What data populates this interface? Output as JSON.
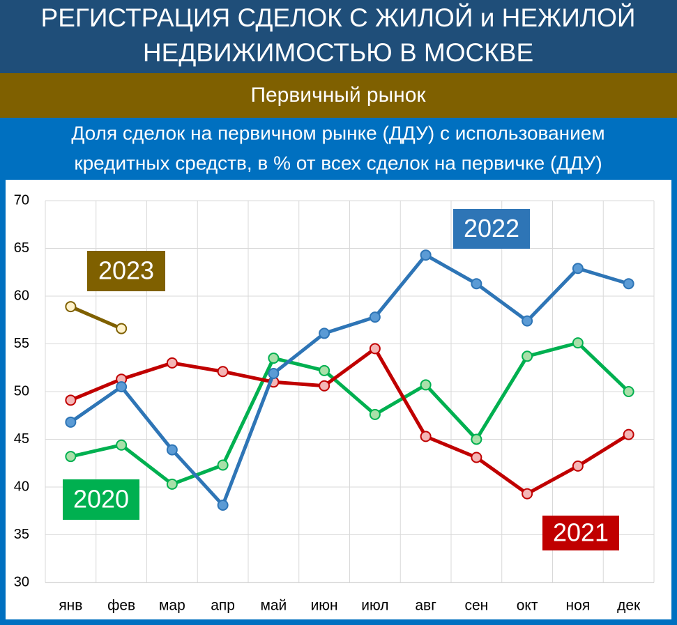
{
  "header": {
    "title_line1": "РЕГИСТРАЦИЯ СДЕЛОК С ЖИЛОЙ и НЕЖИЛОЙ",
    "title_line2": "НЕДВИЖИМОСТЬЮ В МОСКВЕ",
    "section": "Первичный рынок"
  },
  "chart_data": {
    "type": "line",
    "title_line1": "Доля сделок на первичном рынке (ДДУ) с использованием",
    "title_line2": "кредитных средств, в % от всех сделок на первичке (ДДУ)",
    "categories": [
      "янв",
      "фев",
      "мар",
      "апр",
      "май",
      "июн",
      "июл",
      "авг",
      "сен",
      "окт",
      "ноя",
      "дек"
    ],
    "series": [
      {
        "name": "2020",
        "color": "#00b050",
        "values": [
          43.2,
          44.4,
          40.3,
          42.3,
          53.5,
          52.2,
          47.6,
          50.7,
          45.0,
          53.7,
          55.1,
          50.0
        ]
      },
      {
        "name": "2021",
        "color": "#c00000",
        "values": [
          49.1,
          51.3,
          53.0,
          52.1,
          51.0,
          50.6,
          54.5,
          45.3,
          43.1,
          39.3,
          42.2,
          45.5
        ]
      },
      {
        "name": "2022",
        "color": "#2e75b6",
        "values": [
          46.8,
          50.5,
          43.9,
          38.1,
          51.9,
          56.1,
          57.8,
          64.3,
          61.3,
          57.4,
          62.9,
          61.3
        ]
      },
      {
        "name": "2023",
        "color": "#7f6000",
        "values": [
          58.9,
          56.6,
          null,
          null,
          null,
          null,
          null,
          null,
          null,
          null,
          null,
          null
        ]
      }
    ],
    "ylim": [
      30,
      70
    ],
    "yticks": [
      30,
      35,
      40,
      45,
      50,
      55,
      60,
      65,
      70
    ],
    "grid": true
  }
}
